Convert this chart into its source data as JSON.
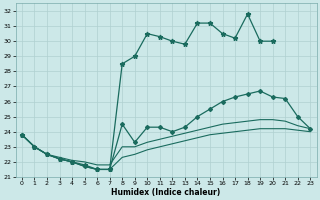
{
  "xlabel": "Humidex (Indice chaleur)",
  "background_color": "#cce8e8",
  "line_color": "#1a6b5e",
  "grid_color": "#b0d0d0",
  "ylim": [
    21,
    32.5
  ],
  "xlim": [
    -0.5,
    23.5
  ],
  "yticks": [
    21,
    22,
    23,
    24,
    25,
    26,
    27,
    28,
    29,
    30,
    31,
    32
  ],
  "xticks": [
    0,
    1,
    2,
    3,
    4,
    5,
    6,
    7,
    8,
    9,
    10,
    11,
    12,
    13,
    14,
    15,
    16,
    17,
    18,
    19,
    20,
    21,
    22,
    23
  ],
  "line1_x": [
    0,
    1,
    2,
    3,
    4,
    5,
    6,
    7,
    8,
    9,
    10,
    11,
    12,
    13,
    14,
    15,
    16,
    17,
    18,
    19,
    20
  ],
  "line1_y": [
    23.8,
    23.0,
    22.5,
    22.2,
    22.0,
    21.8,
    21.5,
    21.5,
    28.5,
    29.0,
    30.5,
    30.3,
    30.0,
    29.8,
    31.2,
    31.2,
    30.5,
    30.2,
    31.8,
    30.0,
    30.0
  ],
  "line2_x": [
    0,
    1,
    2,
    3,
    4,
    5,
    6,
    7,
    8,
    9,
    10,
    11,
    12,
    13,
    14,
    15,
    16,
    17,
    18,
    19,
    20,
    21,
    22,
    23
  ],
  "line2_y": [
    23.8,
    23.0,
    22.5,
    22.2,
    22.0,
    21.7,
    21.5,
    21.5,
    24.5,
    23.3,
    24.3,
    24.3,
    24.0,
    24.3,
    25.0,
    25.5,
    26.0,
    26.3,
    26.5,
    26.7,
    26.3,
    26.2,
    25.0,
    24.2
  ],
  "line3_x": [
    0,
    1,
    2,
    3,
    4,
    5,
    6,
    7,
    8,
    9,
    10,
    11,
    12,
    13,
    14,
    15,
    16,
    17,
    18,
    19,
    20,
    21,
    22,
    23
  ],
  "line3_y": [
    23.8,
    23.0,
    22.5,
    22.3,
    22.1,
    22.0,
    21.8,
    21.8,
    23.0,
    23.0,
    23.3,
    23.5,
    23.7,
    23.9,
    24.1,
    24.3,
    24.5,
    24.6,
    24.7,
    24.8,
    24.8,
    24.7,
    24.4,
    24.2
  ],
  "line4_x": [
    0,
    1,
    2,
    3,
    4,
    5,
    6,
    7,
    8,
    9,
    10,
    11,
    12,
    13,
    14,
    15,
    16,
    17,
    18,
    19,
    20,
    21,
    22,
    23
  ],
  "line4_y": [
    23.8,
    23.0,
    22.5,
    22.2,
    22.0,
    21.7,
    21.5,
    21.5,
    22.3,
    22.5,
    22.8,
    23.0,
    23.2,
    23.4,
    23.6,
    23.8,
    23.9,
    24.0,
    24.1,
    24.2,
    24.2,
    24.2,
    24.1,
    24.0
  ]
}
